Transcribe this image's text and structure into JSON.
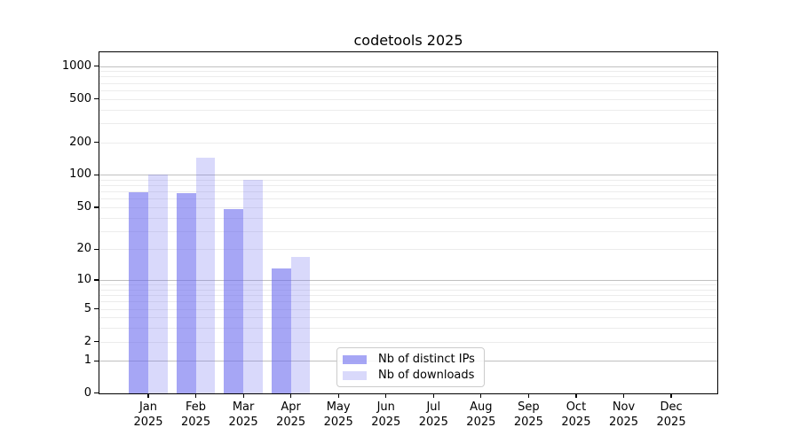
{
  "figure": {
    "title": "codetools 2025"
  },
  "chart_data": {
    "type": "bar",
    "title": "codetools 2025",
    "categories": [
      "Jan",
      "Feb",
      "Mar",
      "Apr",
      "May",
      "Jun",
      "Jul",
      "Aug",
      "Sep",
      "Oct",
      "Nov",
      "Dec"
    ],
    "category_year": "2025",
    "series": [
      {
        "name": "Nb of distinct IPs",
        "color": "rgba(102,102,238,0.58)",
        "values": [
          69,
          68,
          48,
          13,
          null,
          null,
          null,
          null,
          null,
          null,
          null,
          null
        ]
      },
      {
        "name": "Nb of downloads",
        "color": "rgba(102,102,238,0.25)",
        "values": [
          101,
          144,
          90,
          17,
          null,
          null,
          null,
          null,
          null,
          null,
          null,
          null
        ]
      }
    ],
    "y_scale": "log10(value+1)",
    "ylim": [
      0,
      1336
    ],
    "y_ticks": [
      0,
      1,
      2,
      5,
      10,
      20,
      50,
      100,
      200,
      500,
      1000
    ],
    "y_major_gridlines": [
      1,
      10,
      100,
      1000
    ],
    "y_minor_gridlines": [
      2,
      3,
      4,
      5,
      6,
      7,
      8,
      9,
      20,
      30,
      40,
      50,
      60,
      70,
      80,
      90,
      200,
      300,
      400,
      500,
      600,
      700,
      800,
      900
    ],
    "grid": "on",
    "legend_position": "inside-bottom-center",
    "colors": {
      "bar_base": "#6666ee",
      "major_grid": "#c0c0c0",
      "minor_grid": "#ececec",
      "axis": "#000000",
      "background": "#ffffff"
    }
  }
}
